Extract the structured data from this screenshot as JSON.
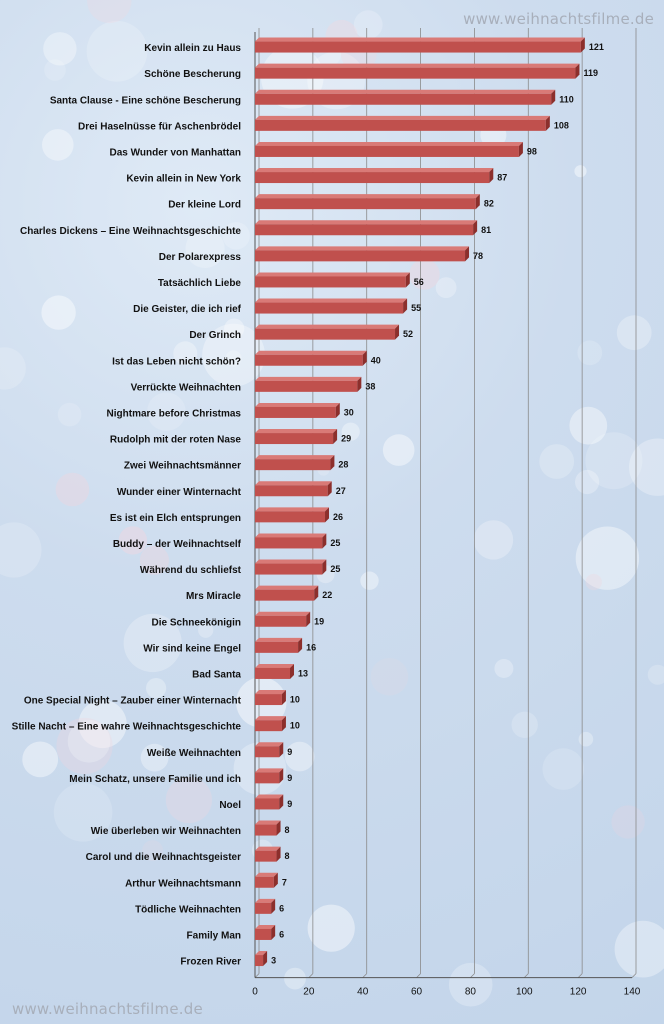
{
  "watermark": {
    "top": "www.weihnachtsfilme.de",
    "bottom": "www.weihnachtsfilme.de"
  },
  "colors": {
    "bar_front": "#c0504d",
    "bar_top": "#d97a77",
    "bar_side": "#8c2f2c",
    "grid": "#8a8a8a"
  },
  "chart_data": {
    "type": "bar",
    "orientation": "horizontal",
    "categories": [
      "Kevin allein zu Haus",
      "Schöne Bescherung",
      "Santa Clause - Eine schöne Bescherung",
      "Drei Haselnüsse für Aschenbrödel",
      "Das Wunder von Manhattan",
      "Kevin allein in New York",
      "Der kleine Lord",
      "Charles Dickens – Eine Weihnachtsgeschichte",
      "Der Polarexpress",
      "Tatsächlich Liebe",
      "Die Geister, die ich rief",
      "Der Grinch",
      "Ist das Leben nicht schön?",
      "Verrückte Weihnachten",
      "Nightmare before Christmas",
      "Rudolph mit der roten Nase",
      "Zwei Weihnachtsmänner",
      "Wunder einer Winternacht",
      "Es ist ein Elch entsprungen",
      "Buddy – der Weihnachtself",
      "Während du schliefst",
      "Mrs Miracle",
      "Die Schneekönigin",
      "Wir sind keine Engel",
      "Bad Santa",
      "One Special Night – Zauber einer Winternacht",
      "Stille Nacht – Eine wahre Weihnachtsgeschichte",
      "Weiße Weihnachten",
      "Mein Schatz, unsere Familie und ich",
      "Noel",
      "Wie überleben wir Weihnachten",
      "Carol und die Weihnachtsgeister",
      "Arthur Weihnachtsmann",
      "Tödliche Weihnachten",
      "Family Man",
      "Frozen River"
    ],
    "values": [
      121,
      119,
      110,
      108,
      98,
      87,
      82,
      81,
      78,
      56,
      55,
      52,
      40,
      38,
      30,
      29,
      28,
      27,
      26,
      25,
      25,
      22,
      19,
      16,
      13,
      10,
      10,
      9,
      9,
      9,
      8,
      8,
      7,
      6,
      6,
      3
    ],
    "xlim": [
      0,
      140
    ],
    "xticks": [
      0,
      20,
      40,
      60,
      80,
      100,
      120,
      140
    ],
    "grid": true,
    "data_labels": true,
    "style": "3d-bar"
  }
}
